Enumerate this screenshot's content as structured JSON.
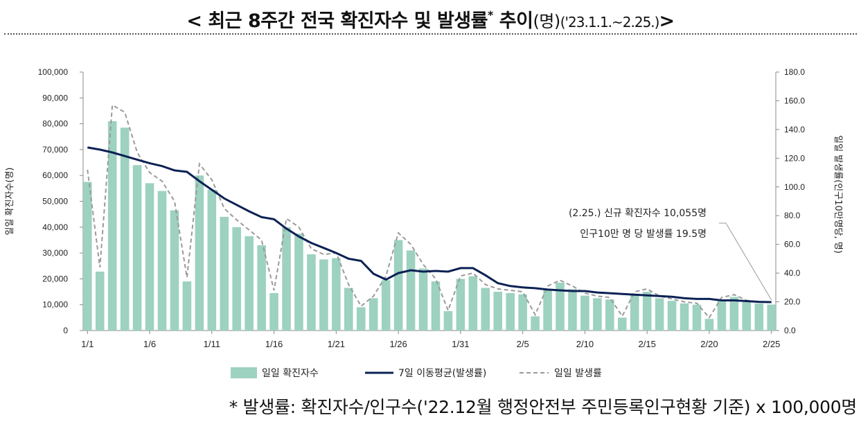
{
  "title": {
    "open": "<",
    "main": "최근 8주간 전국 확진자수 및 발생률",
    "star": "*",
    "tail": "추이",
    "unit": "(명)",
    "period": "('23.1.1.~2.25.)",
    "close": ">"
  },
  "footnote": "* 발생률: 확진자수/인구수('22.12월 행정안전부 주민등록인구현황 기준) x 100,000명",
  "colors": {
    "bar": "#9dd1c0",
    "avg_line": "#0b2154",
    "daily_line": "#9a9a9a",
    "axis": "#888888"
  },
  "chart_data": {
    "type": "bar",
    "x_tick_labels": [
      "1/1",
      "1/6",
      "1/11",
      "1/16",
      "1/21",
      "1/26",
      "1/31",
      "2/5",
      "2/10",
      "2/15",
      "2/20",
      "2/25"
    ],
    "dates": [
      "1/1",
      "1/2",
      "1/3",
      "1/4",
      "1/5",
      "1/6",
      "1/7",
      "1/8",
      "1/9",
      "1/10",
      "1/11",
      "1/12",
      "1/13",
      "1/14",
      "1/15",
      "1/16",
      "1/17",
      "1/18",
      "1/19",
      "1/20",
      "1/21",
      "1/22",
      "1/23",
      "1/24",
      "1/25",
      "1/26",
      "1/27",
      "1/28",
      "1/29",
      "1/30",
      "1/31",
      "2/1",
      "2/2",
      "2/3",
      "2/4",
      "2/5",
      "2/6",
      "2/7",
      "2/8",
      "2/9",
      "2/10",
      "2/11",
      "2/12",
      "2/13",
      "2/14",
      "2/15",
      "2/16",
      "2/17",
      "2/18",
      "2/19",
      "2/20",
      "2/21",
      "2/22",
      "2/23",
      "2/24",
      "2/25"
    ],
    "y_left": {
      "label": "일일 확진자수(명)",
      "range": [
        0,
        100000
      ],
      "ticks": [
        "0",
        "10,000",
        "20,000",
        "30,000",
        "40,000",
        "50,000",
        "60,000",
        "70,000",
        "80,000",
        "90,000",
        "100,000"
      ]
    },
    "y_right": {
      "label": "일일 발생률(인구10만명당, 명)",
      "range": [
        0,
        180
      ],
      "ticks": [
        "0.0",
        "20.0",
        "40.0",
        "60.0",
        "80.0",
        "100.0",
        "120.0",
        "140.0",
        "160.0",
        "180.0"
      ]
    },
    "series": [
      {
        "name": "일일 확진자수",
        "type": "bar",
        "axis": "left",
        "values": [
          57500,
          22800,
          81000,
          78500,
          64000,
          57000,
          54000,
          46500,
          19000,
          60000,
          54500,
          44000,
          40000,
          36500,
          33000,
          14500,
          40000,
          37500,
          29500,
          27500,
          28000,
          16500,
          9000,
          12500,
          19500,
          35000,
          31000,
          24000,
          19000,
          7500,
          20000,
          21000,
          16500,
          15000,
          14500,
          14000,
          5500,
          16000,
          18500,
          16000,
          13500,
          12500,
          12000,
          5000,
          14000,
          15000,
          12500,
          11500,
          10500,
          10000,
          4500,
          12000,
          13000,
          11000,
          10500,
          10055
        ]
      },
      {
        "name": "7일 이동평균(발생률)",
        "type": "line",
        "axis": "right",
        "values": [
          127.5,
          126,
          124,
          121.5,
          119,
          116.5,
          114.5,
          111.5,
          110.5,
          104,
          98,
          92,
          87.5,
          83,
          79,
          77.5,
          71,
          65.5,
          61,
          57.5,
          54,
          50,
          48.5,
          39.5,
          35.5,
          40,
          42,
          41,
          41.5,
          41,
          43.5,
          43.5,
          38.5,
          33,
          31,
          30,
          29.5,
          28.5,
          28,
          27.5,
          27.5,
          26.5,
          26,
          25.5,
          25,
          24.5,
          24,
          23.5,
          22.5,
          22,
          22,
          21,
          21,
          20.5,
          20,
          19.8
        ]
      },
      {
        "name": "일일 발생률",
        "type": "line",
        "axis": "right",
        "style": "dashed",
        "values": [
          112,
          44,
          157,
          152,
          124,
          110,
          104,
          90,
          37,
          116,
          105,
          85,
          77,
          70,
          63,
          28,
          78,
          72,
          57,
          53,
          54,
          32,
          17,
          24,
          38,
          68,
          60,
          46,
          36,
          14,
          38,
          40,
          32,
          29,
          28,
          27,
          11,
          31,
          35,
          31,
          26,
          24,
          23,
          10,
          27,
          29,
          24,
          22,
          20,
          19,
          9,
          23,
          25,
          21,
          20,
          19.5
        ]
      }
    ],
    "legend": {
      "placement": "bottom",
      "entries": [
        "일일 확진자수",
        "7일 이동평균(발생률)",
        "일일 발생률"
      ]
    },
    "annotation": {
      "line1": "(2.25.) 신규 확진자수 10,055명",
      "line2": "인구10만 명 당 발생률 19.5명",
      "target_date": "2/25"
    },
    "grid": false
  }
}
